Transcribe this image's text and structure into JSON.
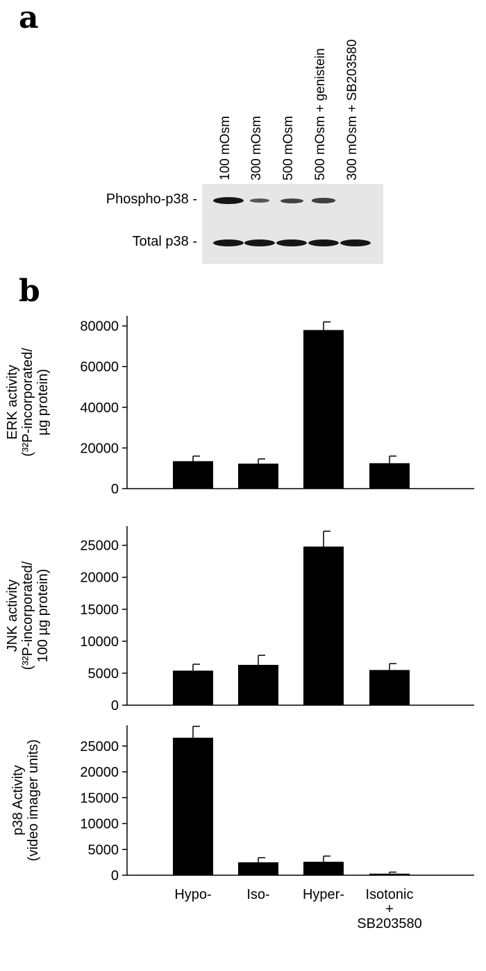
{
  "panel_a": {
    "letter": "a",
    "lanes": [
      "100 mOsm",
      "300 mOsm",
      "500 mOsm",
      "500 mOsm + genistein",
      "300 mOsm + SB203580"
    ],
    "rows": [
      {
        "label": "Phospho-p38 -",
        "band_intensity": [
          1.0,
          0.3,
          0.5,
          0.55,
          0.0
        ]
      },
      {
        "label": "Total p38 -",
        "band_intensity": [
          1.0,
          1.0,
          1.0,
          1.0,
          1.0
        ]
      }
    ]
  },
  "panel_b": {
    "letter": "b"
  },
  "chart_data": [
    {
      "type": "bar",
      "categories": [
        "Hypo-",
        "Iso-",
        "Hyper-",
        "Isotonic + SB203580"
      ],
      "values": [
        13500,
        12300,
        78000,
        12500
      ],
      "errors": [
        2500,
        2300,
        4000,
        3500
      ],
      "ylabel_lines": [
        "ERK activity",
        "(³²P-incorporated/",
        "µg protein)"
      ],
      "ylim": [
        0,
        85000
      ],
      "yticks": [
        "0",
        "20000",
        "40000",
        "60000",
        "80000"
      ],
      "ytick_values": [
        0,
        20000,
        40000,
        60000,
        80000
      ]
    },
    {
      "type": "bar",
      "categories": [
        "Hypo-",
        "Iso-",
        "Hyper-",
        "Isotonic + SB203580"
      ],
      "values": [
        5400,
        6300,
        24800,
        5500
      ],
      "errors": [
        1000,
        1500,
        2400,
        1000
      ],
      "ylabel_lines": [
        "JNK activity",
        "(³²P-incorporated/",
        "100 µg protein)"
      ],
      "ylim": [
        0,
        28000
      ],
      "yticks": [
        "0",
        "5000",
        "10000",
        "15000",
        "20000",
        "25000"
      ],
      "ytick_values": [
        0,
        5000,
        10000,
        15000,
        20000,
        25000
      ]
    },
    {
      "type": "bar",
      "categories": [
        "Hypo-",
        "Iso-",
        "Hyper-",
        "Isotonic + SB203580"
      ],
      "values": [
        26600,
        2500,
        2600,
        300
      ],
      "errors": [
        2200,
        900,
        1100,
        300
      ],
      "ylabel_lines": [
        "p38 Activity",
        "(video imager units)"
      ],
      "ylim": [
        0,
        29000
      ],
      "yticks": [
        "0",
        "5000",
        "10000",
        "15000",
        "20000",
        "25000"
      ],
      "ytick_values": [
        0,
        5000,
        10000,
        15000,
        20000,
        25000
      ],
      "xtick_labels": [
        [
          "Hypo-"
        ],
        [
          "Iso-"
        ],
        [
          "Hyper-"
        ],
        [
          "Isotonic",
          "+",
          "SB203580"
        ]
      ]
    }
  ]
}
